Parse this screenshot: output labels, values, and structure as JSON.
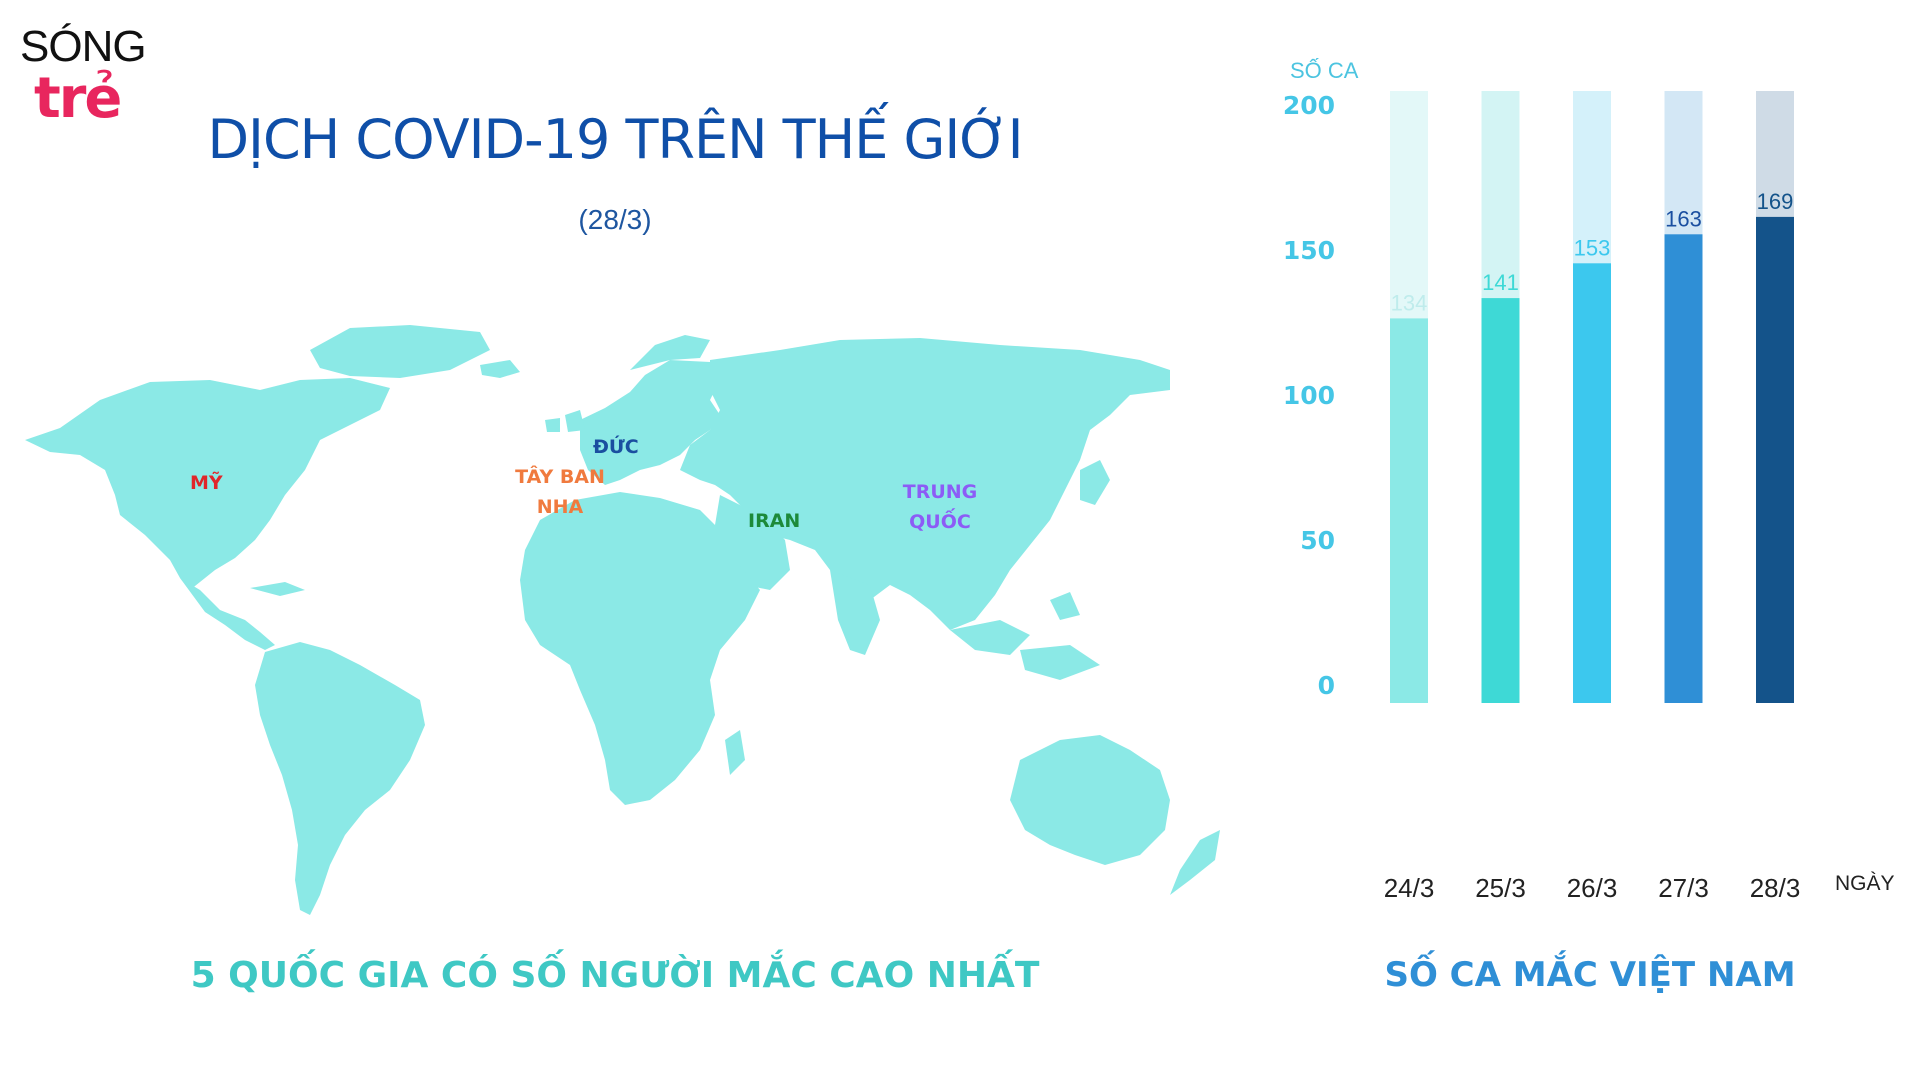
{
  "logo": {
    "top": "SÓNG",
    "bottom": "trẻ"
  },
  "title": "DỊCH COVID-19 TRÊN THẾ GIỚI",
  "subtitle": "(28/3)",
  "map": {
    "land_color": "#8be9e6",
    "labels": [
      {
        "id": "my",
        "text": "MỸ",
        "color": "#e0262a"
      },
      {
        "id": "taybannha",
        "text": "TÂY BAN NHA",
        "color": "#f07a3e"
      },
      {
        "id": "duc",
        "text": "ĐỨC",
        "color": "#1a4fa0"
      },
      {
        "id": "iran",
        "text": "IRAN",
        "color": "#1d8a3a"
      },
      {
        "id": "trungquoc",
        "text": "TRUNG QUỐC",
        "color": "#8c5cf6"
      }
    ],
    "caption": "5 QUỐC GIA CÓ SỐ NGƯỜI MẮC CAO NHẤT"
  },
  "chart_data": {
    "type": "bar",
    "categories": [
      "24/3",
      "25/3",
      "26/3",
      "27/3",
      "28/3"
    ],
    "values": [
      134,
      141,
      153,
      163,
      169
    ],
    "ylabel": "SỐ CA",
    "xlabel": "NGÀY",
    "ylim": [
      0,
      200
    ],
    "yticks": [
      0,
      50,
      100,
      150,
      200
    ],
    "bar_colors": [
      "#8be9e6",
      "#3ed9d6",
      "#3cc8ee",
      "#2f8fd6",
      "#14538a"
    ],
    "track_colors": [
      "#e3f8f8",
      "#d3f4f4",
      "#d4f1fa",
      "#d3e7f5",
      "#cfdbe6"
    ],
    "label_colors": [
      "#bfecec",
      "#3ed9d6",
      "#3cc8ee",
      "#1a4fa0",
      "#14538a"
    ],
    "title": "SỐ CA MẮC VIỆT NAM"
  }
}
